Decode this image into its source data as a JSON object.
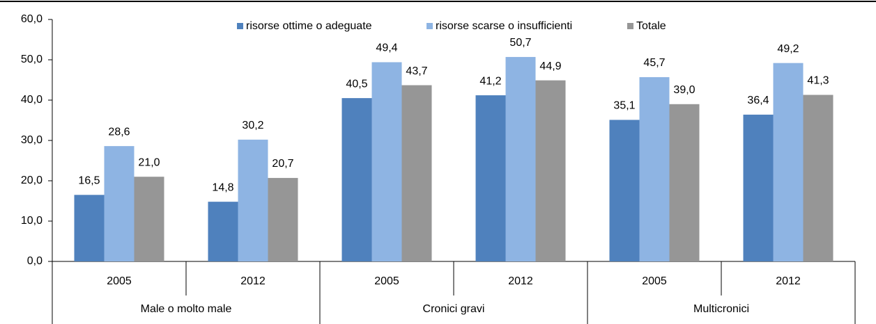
{
  "chart_data": {
    "type": "bar",
    "categories": [
      "2005",
      "2012",
      "2005",
      "2012",
      "2005",
      "2012"
    ],
    "groups": [
      "Male o molto male",
      "Cronici gravi",
      "Multicronici"
    ],
    "series": [
      {
        "name": "risorse ottime o adeguate",
        "color": "#4f81bd",
        "values": [
          16.5,
          14.8,
          40.5,
          41.2,
          35.1,
          36.4
        ],
        "value_labels": [
          "16,5",
          "14,8",
          "40,5",
          "41,2",
          "35,1",
          "36,4"
        ]
      },
      {
        "name": "risorse scarse o insufficienti",
        "color": "#8eb4e3",
        "values": [
          28.6,
          30.2,
          49.4,
          50.7,
          45.7,
          49.2
        ],
        "value_labels": [
          "28,6",
          "30,2",
          "49,4",
          "50,7",
          "45,7",
          "49,2"
        ]
      },
      {
        "name": "Totale",
        "color": "#969696",
        "values": [
          21.0,
          20.7,
          43.7,
          44.9,
          39.0,
          41.3
        ],
        "value_labels": [
          "21,0",
          "20,7",
          "43,7",
          "44,9",
          "39,0",
          "41,3"
        ]
      }
    ],
    "ylim": [
      0,
      60
    ],
    "yticks": [
      {
        "value": 0,
        "label": "0,0"
      },
      {
        "value": 10,
        "label": "10,0"
      },
      {
        "value": 20,
        "label": "20,0"
      },
      {
        "value": 30,
        "label": "30,0"
      },
      {
        "value": 40,
        "label": "40,0"
      },
      {
        "value": 50,
        "label": "50,0"
      },
      {
        "value": 60,
        "label": "60,0"
      }
    ],
    "legend": "top"
  }
}
